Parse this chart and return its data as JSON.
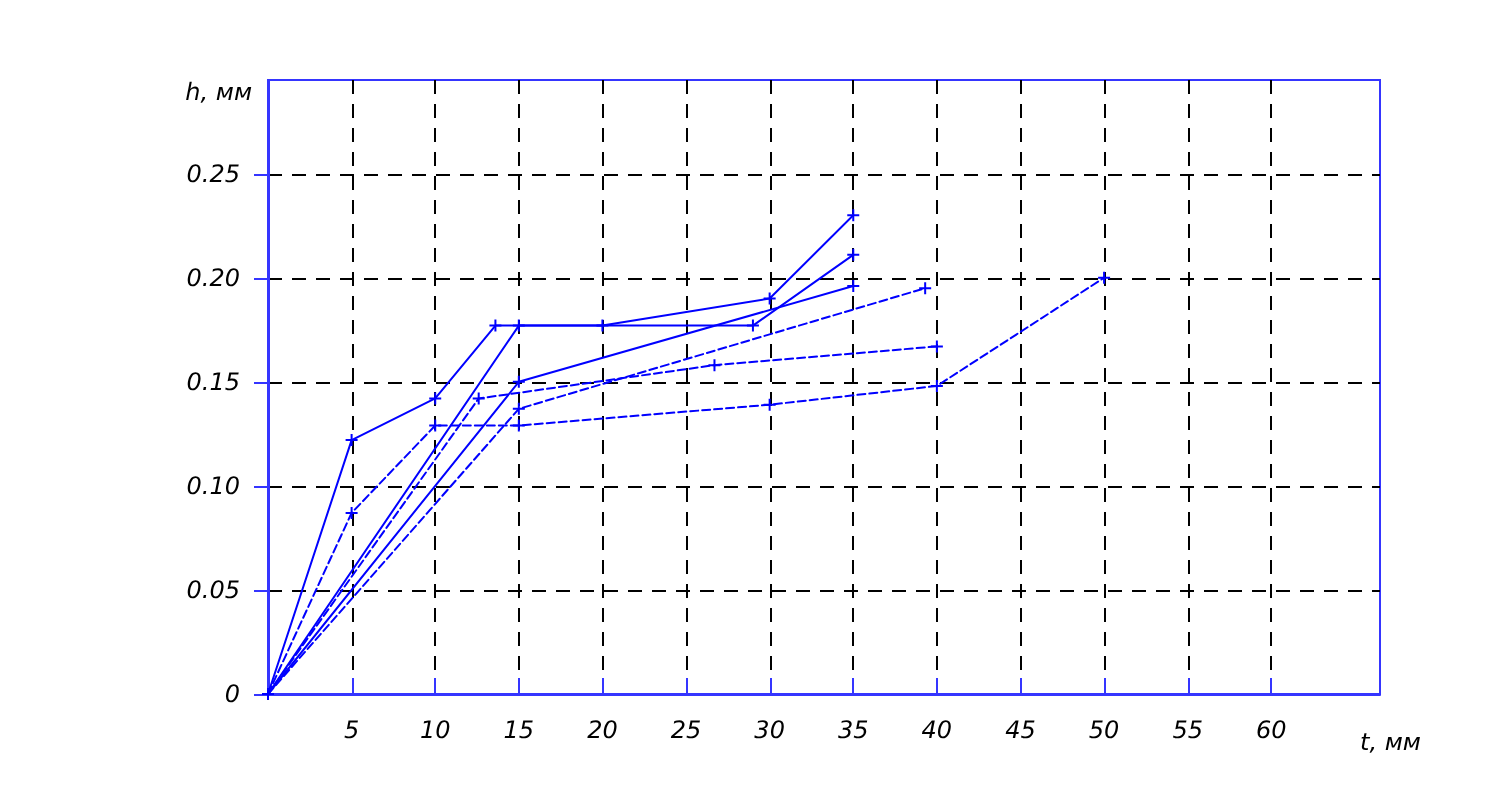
{
  "chart_data": {
    "type": "line",
    "xlabel": "t, мм",
    "ylabel": "h, мм",
    "xlim": [
      0,
      66.5
    ],
    "ylim": [
      0,
      0.295
    ],
    "xticks": [
      5,
      10,
      15,
      20,
      25,
      30,
      35,
      40,
      45,
      50,
      55,
      60
    ],
    "yticks": [
      0,
      0.05,
      {
        "value": 0.1,
        "label": "0.10"
      },
      0.15,
      {
        "value": 0.2,
        "label": "0.20"
      },
      0.25
    ],
    "grid": true,
    "marker": "cross",
    "series": [
      {
        "color": "#0000ff",
        "line_style": "solid",
        "x": [
          0,
          5,
          10,
          13.6,
          29,
          35
        ],
        "values": [
          0,
          0.122,
          0.142,
          0.177,
          0.177,
          0.211
        ]
      },
      {
        "color": "#0000ff",
        "line_style": "solid",
        "x": [
          0,
          15,
          20,
          30,
          35
        ],
        "values": [
          0,
          0.177,
          0.177,
          0.19,
          0.23
        ]
      },
      {
        "color": "#0000ff",
        "line_style": "solid",
        "x": [
          0,
          15,
          35
        ],
        "values": [
          0,
          0.15,
          0.196
        ]
      },
      {
        "color": "#0000ff",
        "line_style": "dashed",
        "x": [
          0,
          12.6,
          26.7,
          40
        ],
        "values": [
          0,
          0.142,
          0.158,
          0.167
        ]
      },
      {
        "color": "#0000ff",
        "line_style": "dashed",
        "x": [
          0,
          15,
          39.3
        ],
        "values": [
          0,
          0.137,
          0.195
        ]
      },
      {
        "color": "#0000ff",
        "line_style": "dashed",
        "x": [
          0,
          5,
          10,
          15,
          30,
          40,
          50
        ],
        "values": [
          0,
          0.087,
          0.129,
          0.129,
          0.139,
          0.148,
          0.2
        ]
      }
    ]
  }
}
